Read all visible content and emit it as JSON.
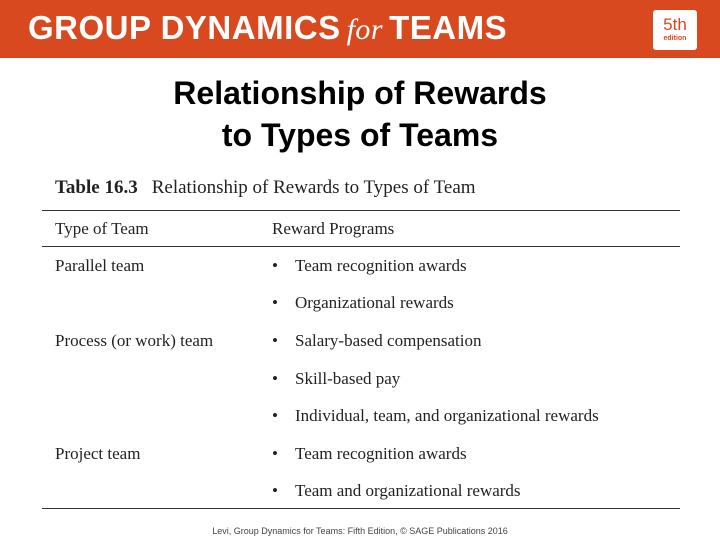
{
  "banner": {
    "title_part1": "GROUP DYNAMICS",
    "title_for": "for",
    "title_part2": "TEAMS",
    "edition_number": "5th",
    "edition_word": "edition"
  },
  "slide": {
    "title_line1": "Relationship of Rewards",
    "title_line2": "to Types of Teams"
  },
  "table": {
    "number": "Table 16.3",
    "caption": "Relationship of Rewards to Types of Team",
    "headers": {
      "type": "Type of Team",
      "rewards": "Reward Programs"
    },
    "rows": [
      {
        "label": "Parallel team",
        "rewards": [
          "Team recognition awards",
          "Organizational rewards"
        ]
      },
      {
        "label": "Process (or work) team",
        "rewards": [
          "Salary-based compensation",
          "Skill-based pay",
          "Individual, team, and organizational rewards"
        ]
      },
      {
        "label": "Project team",
        "rewards": [
          "Team recognition awards",
          "Team and organizational rewards"
        ]
      }
    ],
    "bullet": "•"
  },
  "footer": {
    "citation": "Levi, Group Dynamics for Teams: Fifth Edition, © SAGE Publications 2016"
  }
}
